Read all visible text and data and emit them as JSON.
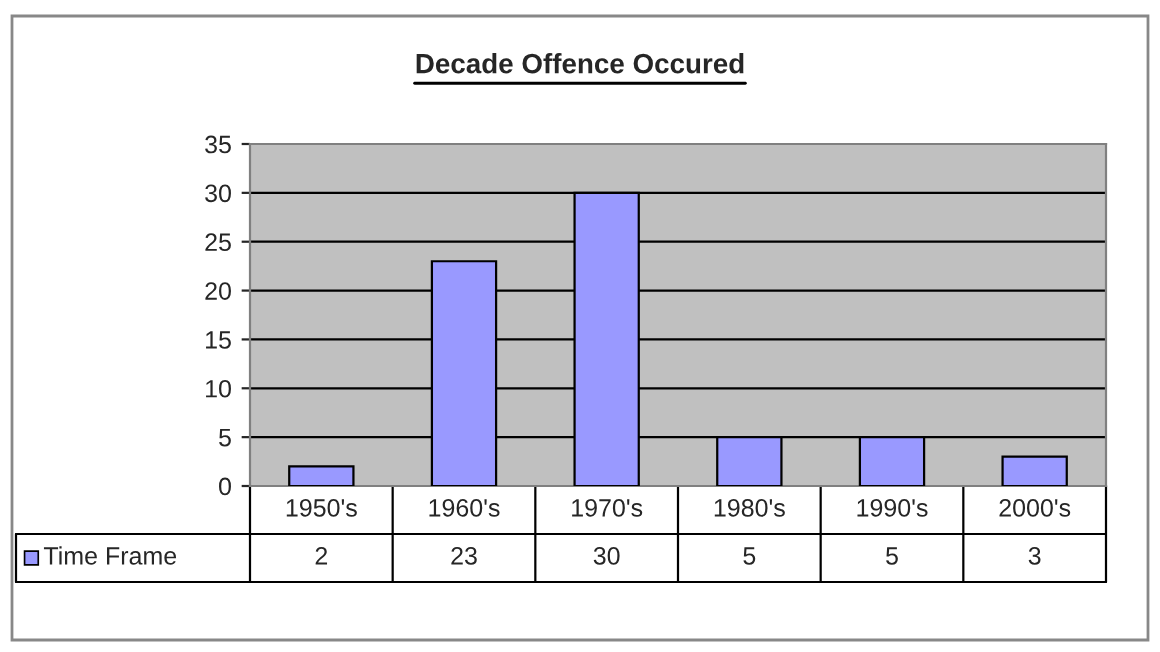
{
  "chart_data": {
    "type": "bar",
    "title": "Decade Offence Occured",
    "categories": [
      "1950's",
      "1960's",
      "1970's",
      "1980's",
      "1990's",
      "2000's"
    ],
    "series": [
      {
        "name": "Time Frame",
        "color": "#9999ff",
        "values": [
          2,
          23,
          30,
          5,
          5,
          3
        ]
      }
    ],
    "ylim": [
      0,
      35
    ],
    "yticks": [
      0,
      5,
      10,
      15,
      20,
      25,
      30,
      35
    ],
    "grid": "y",
    "legend": "bottom left",
    "data_labels": true
  }
}
